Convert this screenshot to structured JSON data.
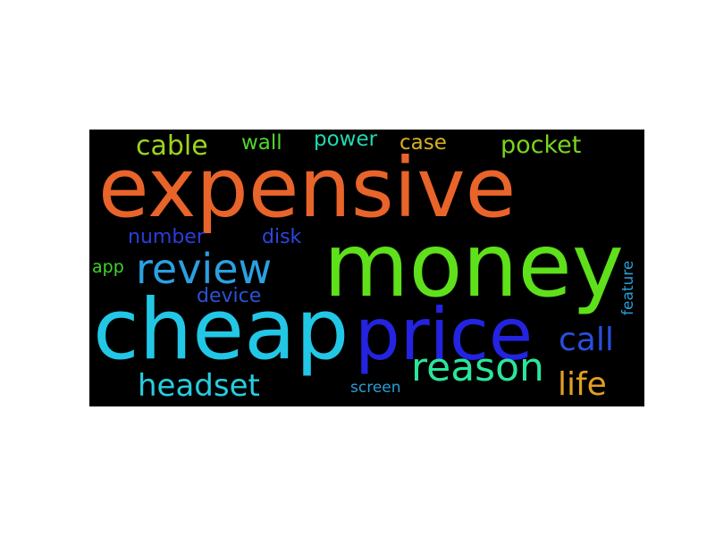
{
  "word_cloud": {
    "background_color": "#000000",
    "words": [
      {
        "key": "expensive",
        "text": "expensive",
        "color": "#e8642a"
      },
      {
        "key": "money",
        "text": "money",
        "color": "#5ee01b"
      },
      {
        "key": "cheap",
        "text": "cheap",
        "color": "#22c7e6"
      },
      {
        "key": "price",
        "text": "price",
        "color": "#2323e0"
      },
      {
        "key": "review",
        "text": "review",
        "color": "#2ba0e0"
      },
      {
        "key": "reason",
        "text": "reason",
        "color": "#2be59a"
      },
      {
        "key": "headset",
        "text": "headset",
        "color": "#27cde0"
      },
      {
        "key": "call",
        "text": "call",
        "color": "#2a4ee0"
      },
      {
        "key": "life",
        "text": "life",
        "color": "#e0a020"
      },
      {
        "key": "cable",
        "text": "cable",
        "color": "#9cd41e"
      },
      {
        "key": "wall",
        "text": "wall",
        "color": "#52d62a"
      },
      {
        "key": "power",
        "text": "power",
        "color": "#20d9b2"
      },
      {
        "key": "case",
        "text": "case",
        "color": "#d6b21e"
      },
      {
        "key": "pocket",
        "text": "pocket",
        "color": "#7ad41e"
      },
      {
        "key": "number",
        "text": "number",
        "color": "#2a3ed9"
      },
      {
        "key": "disk",
        "text": "disk",
        "color": "#2a46e0"
      },
      {
        "key": "app",
        "text": "app",
        "color": "#3ed62a"
      },
      {
        "key": "device",
        "text": "device",
        "color": "#2a52d6"
      },
      {
        "key": "screen",
        "text": "screen",
        "color": "#2a9ed6"
      },
      {
        "key": "feature",
        "text": "feature",
        "color": "#2a9ed6"
      }
    ]
  }
}
